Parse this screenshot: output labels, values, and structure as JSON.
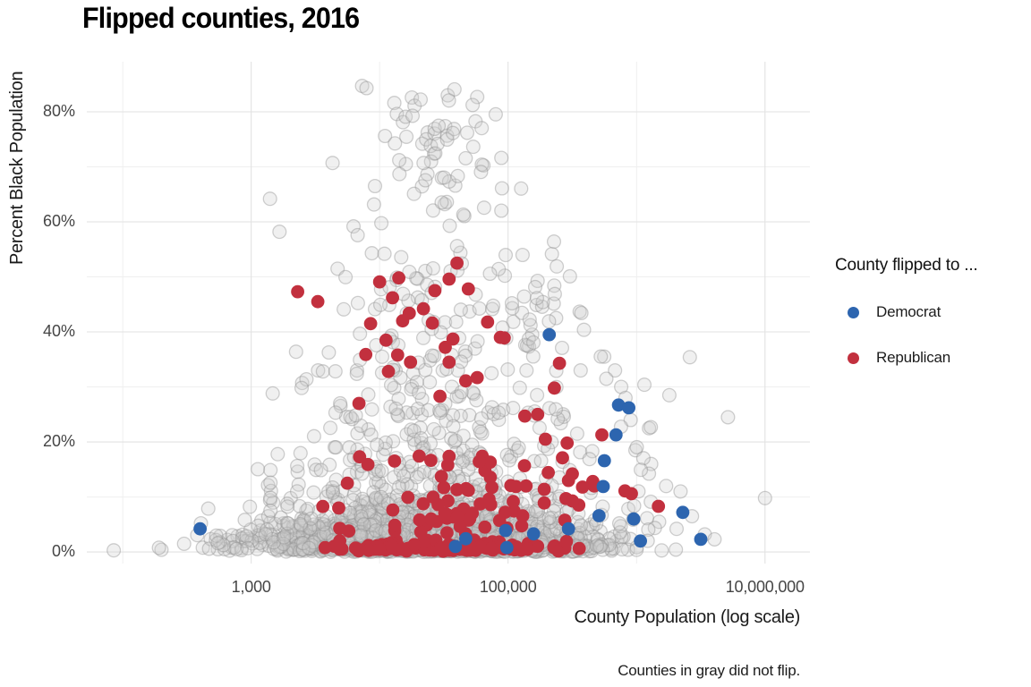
{
  "chart": {
    "title": "Flipped counties, 2016",
    "xlabel": "County Population (log scale)",
    "ylabel": "Percent Black Population",
    "caption": "Counties in gray did not flip.",
    "legend": {
      "title": "County flipped to ...",
      "items": [
        {
          "label": "Democrat",
          "color": "#2D65AF"
        },
        {
          "label": "Republican",
          "color": "#C2303E"
        }
      ]
    }
  },
  "chart_data": {
    "type": "scatter",
    "title": "Flipped counties, 2016",
    "xlabel": "County Population (log scale)",
    "ylabel": "Percent Black Population",
    "caption": "Counties in gray did not flip.",
    "generator_seed": 42,
    "x_axis": {
      "scale": "log10",
      "domain_log10": [
        1.72,
        7.35
      ],
      "major_ticks": [
        {
          "value": 1000,
          "label": "1,000"
        },
        {
          "value": 100000,
          "label": "100,000"
        },
        {
          "value": 10000000,
          "label": "10,000,000"
        }
      ],
      "minor_ticks": [
        100,
        10000,
        1000000
      ]
    },
    "y_axis": {
      "domain": [
        -2.1,
        89.1
      ],
      "major_ticks": [
        {
          "value": 0,
          "label": "0%"
        },
        {
          "value": 20,
          "label": "20%"
        },
        {
          "value": 40,
          "label": "40%"
        },
        {
          "value": 60,
          "label": "60%"
        },
        {
          "value": 80,
          "label": "80%"
        }
      ],
      "minor_ticks": [
        10,
        30,
        50,
        70
      ]
    },
    "style": {
      "point_radius": 7.4,
      "gray_fill": "#cdcdcd",
      "gray_fill_opacity": 0.3,
      "gray_stroke": "#8f8f8f",
      "gray_stroke_opacity": 0.42,
      "major_grid": "#e2e2e2",
      "minor_grid": "#efefef",
      "background": "#ffffff"
    },
    "series": [
      {
        "id": "noflip",
        "name": "Did not flip (gray)",
        "color": "gray",
        "points": [
          [
            85,
            0.3
          ],
          [
            200,
            0.4
          ],
          [
            300,
            1.5
          ],
          [
            420,
            0.8
          ],
          [
            550,
            0.5
          ],
          [
            650,
            2.2
          ],
          [
            10000000,
            9.8
          ],
          [
            5150000,
            24.5
          ],
          [
            2600000,
            35.4
          ],
          [
            1150000,
            30.4
          ],
          [
            1800000,
            28.5
          ],
          [
            7300,
            84.7
          ],
          [
            7900,
            84.3
          ],
          [
            17800,
            82.6
          ],
          [
            18700,
            81.1
          ],
          [
            57500,
            82.7
          ],
          [
            13000,
            81.6
          ],
          [
            13600,
            79.6
          ],
          [
            11000,
            75.6
          ],
          [
            21500,
            74.2
          ],
          [
            26500,
            72.4
          ],
          [
            48000,
            76.2
          ],
          [
            32400,
            77.4
          ],
          [
            30500,
            68.0
          ],
          [
            16000,
            70.5
          ],
          [
            9200,
            66.5
          ],
          [
            4300,
            70.7
          ],
          [
            1400,
            64.2
          ],
          [
            1660,
            58.2
          ],
          [
            263000,
            37.1
          ],
          [
            760000,
            30.0
          ],
          [
            900000,
            24.0
          ],
          [
            1300000,
            16.0
          ],
          [
            1700000,
            12.0
          ],
          [
            2200000,
            11.0
          ],
          [
            2700000,
            6.5
          ],
          [
            3400000,
            3.2
          ],
          [
            1500000,
            5.5
          ],
          [
            2050000,
            4.2
          ],
          [
            1250000,
            22.5
          ],
          [
            820000,
            28.0
          ],
          [
            680000,
            33.0
          ],
          [
            980000,
            18.5
          ],
          [
            560000,
            35.5
          ]
        ],
        "generator": {
          "clusters": [
            {
              "count": 1200,
              "l_mean": 4.3,
              "l_sd": 0.68,
              "l_min": 1.98,
              "l_max": 6.95,
              "p_kind": "halfnorm",
              "p_a": 2.6,
              "p_b": 0.05,
              "p_max": 86
            },
            {
              "count": 700,
              "l_mean": 4.45,
              "l_sd": 0.6,
              "l_min": 2.6,
              "l_max": 6.85,
              "p_kind": "exp",
              "p_a": 7.5,
              "p_b": 0.3,
              "p_max": 33
            },
            {
              "count": 420,
              "l_mean": 4.55,
              "l_sd": 0.55,
              "l_min": 3.15,
              "l_max": 6.2,
              "p_kind": "power",
              "p_a": 86,
              "p_b": 1.45,
              "w_c": 4.55,
              "w_sd": 0.85,
              "w_f": 0.12,
              "p_max": 86
            }
          ]
        }
      },
      {
        "id": "republican",
        "name": "Republican",
        "color": "#C2303E",
        "points": [
          [
            2300,
            47.3
          ],
          [
            3300,
            45.5
          ],
          [
            10000,
            49.1
          ],
          [
            14100,
            49.8
          ],
          [
            40000,
            52.5
          ],
          [
            34700,
            49.6
          ],
          [
            26900,
            47.5
          ],
          [
            49000,
            47.8
          ],
          [
            12600,
            46.2
          ],
          [
            17000,
            43.4
          ],
          [
            21900,
            44.2
          ],
          [
            15100,
            42.0
          ],
          [
            25700,
            41.6
          ],
          [
            8500,
            41.5
          ],
          [
            69200,
            41.8
          ],
          [
            11200,
            38.5
          ],
          [
            37200,
            38.7
          ],
          [
            32400,
            37.2
          ],
          [
            93300,
            38.9
          ],
          [
            7800,
            35.9
          ],
          [
            13800,
            35.8
          ],
          [
            17400,
            34.5
          ],
          [
            34700,
            34.5
          ],
          [
            11700,
            32.8
          ],
          [
            46800,
            31.1
          ],
          [
            57500,
            31.7
          ],
          [
            6900,
            27.0
          ],
          [
            29500,
            28.3
          ],
          [
            87000,
            39.0
          ],
          [
            251000,
            34.3
          ],
          [
            229000,
            29.8
          ],
          [
            135000,
            24.7
          ],
          [
            170000,
            25.0
          ],
          [
            537000,
            21.3
          ],
          [
            195000,
            20.5
          ],
          [
            288000,
            19.8
          ],
          [
            295000,
            13.0
          ],
          [
            457000,
            12.8
          ],
          [
            468000,
            12.0
          ],
          [
            813000,
            11.1
          ],
          [
            912000,
            10.6
          ],
          [
            1480000,
            8.3
          ],
          [
            380000,
            11.8
          ],
          [
            282000,
            9.7
          ],
          [
            191000,
            11.4
          ],
          [
            138000,
            12.0
          ],
          [
            115000,
            11.9
          ],
          [
            66000,
            14.8
          ],
          [
            49000,
            11.2
          ],
          [
            71000,
            9.6
          ],
          [
            191000,
            8.9
          ],
          [
            5600,
            12.5
          ],
          [
            8100,
            15.9
          ],
          [
            33900,
            15.8
          ],
          [
            63000,
            17.4
          ],
          [
            4800,
            8.0
          ],
          [
            31600,
            11.7
          ],
          [
            34000,
            9.3
          ],
          [
            40000,
            7.0
          ],
          [
            43500,
            5.6
          ],
          [
            47000,
            11.5
          ]
        ],
        "generator": {
          "clusters": [
            {
              "count": 115,
              "l_mean": 4.45,
              "l_sd": 0.5,
              "l_min": 3.3,
              "l_max": 5.7,
              "p_kind": "halfnorm",
              "p_a": 1.0,
              "p_b": 0.15,
              "p_max": 3.2
            },
            {
              "count": 36,
              "l_mean": 4.6,
              "l_sd": 0.48,
              "l_min": 3.55,
              "l_max": 5.55,
              "p_kind": "uniform",
              "p_a": 3.2,
              "p_b": 8.8
            },
            {
              "count": 20,
              "l_mean": 4.78,
              "l_sd": 0.42,
              "l_min": 3.8,
              "l_max": 5.5,
              "p_kind": "uniform",
              "p_a": 9.0,
              "p_b": 17.5
            }
          ]
        }
      },
      {
        "id": "democrat",
        "name": "Democrat",
        "color": "#2D65AF",
        "points": [
          [
            400,
            4.2
          ],
          [
            209000,
            39.5
          ],
          [
            724000,
            26.7
          ],
          [
            871000,
            26.2
          ],
          [
            692000,
            21.3
          ],
          [
            562000,
            16.6
          ],
          [
            550000,
            11.9
          ],
          [
            46800,
            2.4
          ],
          [
            38900,
            1.0
          ],
          [
            95500,
            3.9
          ],
          [
            97700,
            0.8
          ],
          [
            158000,
            3.3
          ],
          [
            295000,
            4.2
          ],
          [
            510000,
            6.6
          ],
          [
            950000,
            6.0
          ],
          [
            1072000,
            2.0
          ],
          [
            2290000,
            7.2
          ],
          [
            3160000,
            2.3
          ]
        ]
      }
    ]
  }
}
